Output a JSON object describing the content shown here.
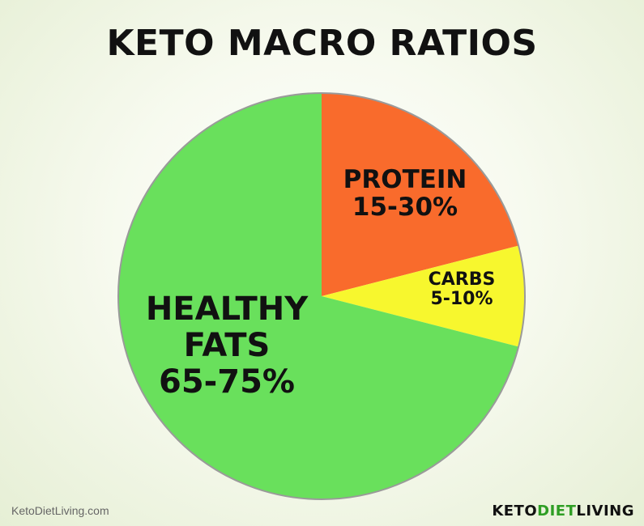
{
  "chart_data": {
    "type": "pie",
    "title": "KETO MACRO RATIOS",
    "slices": [
      {
        "label": "PROTEIN",
        "range": "15-30%",
        "value": 21,
        "color": "#f96b2c"
      },
      {
        "label": "CARBS",
        "range": "5-10%",
        "value": 8,
        "color": "#f7f72e"
      },
      {
        "label": "HEALTHY FATS",
        "label_lines": [
          "HEALTHY",
          "FATS"
        ],
        "range": "65-75%",
        "value": 71,
        "color": "#69e05c"
      }
    ],
    "start_angle_deg": 0,
    "direction": "clockwise",
    "border_color": "#9a9a9a"
  },
  "footer": {
    "website": "KetoDietLiving.com",
    "logo_parts": [
      "KETO",
      "DIET",
      "LIVING"
    ]
  }
}
